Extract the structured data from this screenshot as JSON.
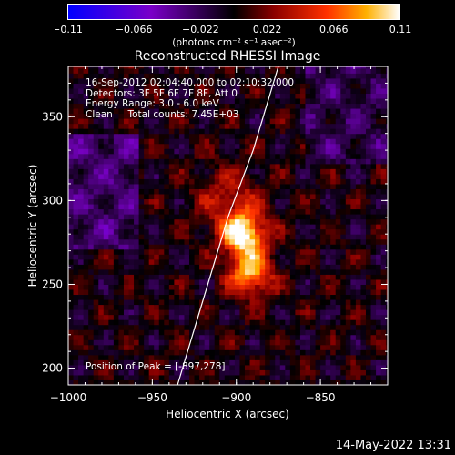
{
  "chart_data": {
    "type": "heatmap",
    "title": "Reconstructed RHESSI Image",
    "xlabel": "Heliocentric X (arcsec)",
    "ylabel": "Heliocentric Y (arcsec)",
    "xlim": [
      -1000,
      -810
    ],
    "ylim": [
      190,
      380
    ],
    "xticks": [
      -1000,
      -950,
      -900,
      -850
    ],
    "yticks": [
      200,
      250,
      300,
      350
    ],
    "colorbar": {
      "ticks": [
        "-0.11",
        "-0.066",
        "-0.022",
        "0.022",
        "0.066",
        "0.11"
      ],
      "label": "(photons cm⁻² s⁻¹ asec⁻²)",
      "range": [
        -0.11,
        0.11
      ]
    },
    "annotations": [
      "16-Sep-2012 02:04:40.000 to 02:10:32.000",
      "Detectors: 3F 5F 6F 7F 8F, Att 0",
      "Energy Range: 3.0 - 6.0 keV",
      "Clean     Total counts: 7.45E+03"
    ],
    "peak_label": "Position of Peak = [-897,278]",
    "peak": [
      -897,
      278
    ],
    "sources": [
      {
        "x": -897,
        "y": 278,
        "sigma": 9,
        "amp": 0.11
      },
      {
        "x": -893,
        "y": 255,
        "sigma": 9,
        "amp": 0.09
      },
      {
        "x": -905,
        "y": 298,
        "sigma": 14,
        "amp": 0.04
      }
    ],
    "limb": [
      [
        -935,
        190
      ],
      [
        -920,
        240
      ],
      [
        -905,
        290
      ],
      [
        -890,
        330
      ],
      [
        -875,
        380
      ]
    ]
  },
  "footer": {
    "timestamp": "14-May-2022 13:31"
  }
}
